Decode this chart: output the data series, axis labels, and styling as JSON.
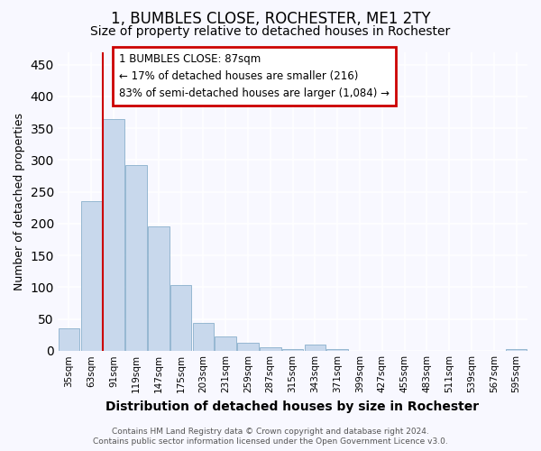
{
  "title": "1, BUMBLES CLOSE, ROCHESTER, ME1 2TY",
  "subtitle": "Size of property relative to detached houses in Rochester",
  "xlabel": "Distribution of detached houses by size in Rochester",
  "ylabel": "Number of detached properties",
  "bar_color": "#c8d8ec",
  "bar_edge_color": "#8ab0cc",
  "categories": [
    "35sqm",
    "63sqm",
    "91sqm",
    "119sqm",
    "147sqm",
    "175sqm",
    "203sqm",
    "231sqm",
    "259sqm",
    "287sqm",
    "315sqm",
    "343sqm",
    "371sqm",
    "399sqm",
    "427sqm",
    "455sqm",
    "483sqm",
    "511sqm",
    "539sqm",
    "567sqm",
    "595sqm"
  ],
  "values": [
    35,
    235,
    365,
    292,
    195,
    103,
    44,
    22,
    13,
    5,
    2,
    10,
    2,
    0,
    0,
    0,
    0,
    0,
    0,
    0,
    2
  ],
  "ylim": [
    0,
    470
  ],
  "yticks": [
    0,
    50,
    100,
    150,
    200,
    250,
    300,
    350,
    400,
    450
  ],
  "red_line_x": 2,
  "annotation_text": "1 BUMBLES CLOSE: 87sqm\n← 17% of detached houses are smaller (216)\n83% of semi-detached houses are larger (1,084) →",
  "annotation_box_facecolor": "#ffffff",
  "annotation_box_edgecolor": "#cc0000",
  "footer_line1": "Contains HM Land Registry data © Crown copyright and database right 2024.",
  "footer_line2": "Contains public sector information licensed under the Open Government Licence v3.0.",
  "fig_facecolor": "#f8f8ff",
  "grid_color": "#e0e8f0",
  "title_fontsize": 12,
  "subtitle_fontsize": 10,
  "xlabel_fontsize": 10,
  "ylabel_fontsize": 9
}
